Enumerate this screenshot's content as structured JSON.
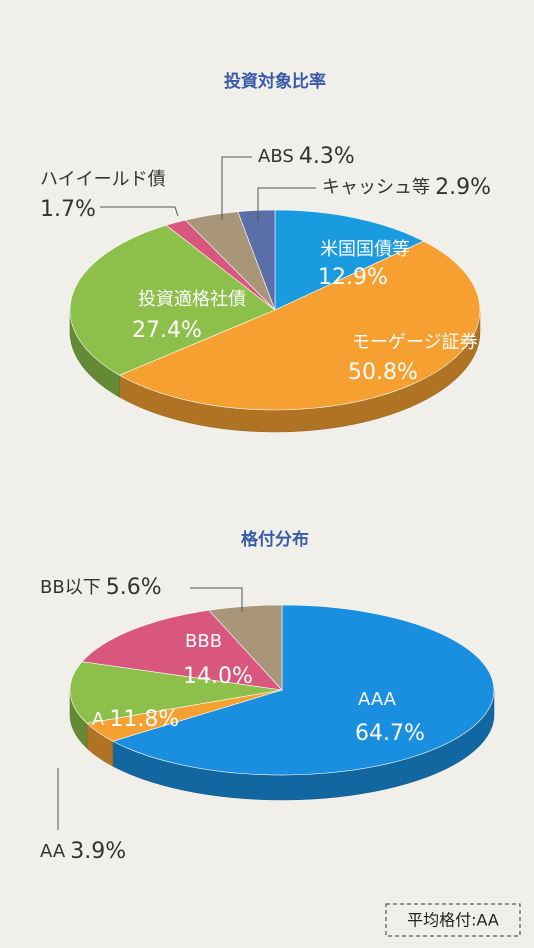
{
  "chart_data": [
    {
      "type": "pie",
      "title": "投資対象比率",
      "categories": [
        "米国国債等",
        "モーゲージ証券",
        "投資適格社債",
        "ハイイールド債",
        "ABS",
        "キャッシュ等"
      ],
      "values": [
        12.9,
        50.8,
        27.4,
        1.7,
        4.3,
        2.9
      ],
      "value_labels": [
        "12.9%",
        "50.8%",
        "27.4%",
        "1.7%",
        "4.3%",
        "2.9%"
      ],
      "colors": [
        "#1a9be0",
        "#f5a030",
        "#8cc04a",
        "#d9577e",
        "#a99678",
        "#5a6ea8"
      ]
    },
    {
      "type": "pie",
      "title": "格付分布",
      "categories": [
        "AAA",
        "AA",
        "A",
        "BBB",
        "BB以下"
      ],
      "values": [
        64.7,
        3.9,
        11.8,
        14.0,
        5.6
      ],
      "value_labels": [
        "64.7%",
        "3.9%",
        "11.8%",
        "14.0%",
        "5.6%"
      ],
      "colors": [
        "#1a8fe0",
        "#f5a030",
        "#8cc04a",
        "#d9577e",
        "#a99678"
      ]
    }
  ],
  "note": "平均格付:AA"
}
